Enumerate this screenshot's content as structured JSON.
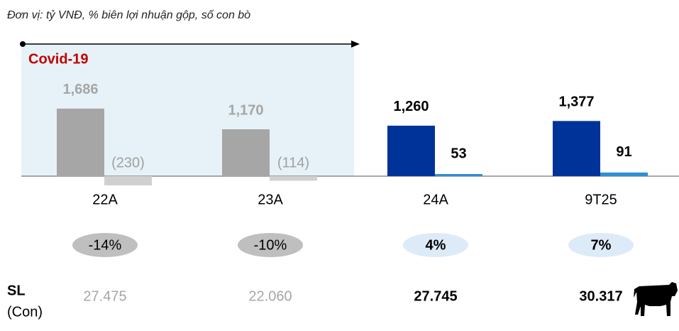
{
  "chart_data": {
    "type": "bar",
    "subtitle": "Đơn vị: tỷ VNĐ, % biên lợi nhuận gộp, số con bò",
    "annotation": {
      "text": "Covid-19",
      "span": [
        "22A",
        "23A"
      ]
    },
    "categories": [
      "22A",
      "23A",
      "24A",
      "9T25"
    ],
    "series": [
      {
        "colors": [
          "#a6a6a6",
          "#a6a6a6",
          "#003399",
          "#003399"
        ],
        "values": [
          1686,
          1170,
          1260,
          1377
        ],
        "value_labels": [
          "1,686",
          "1,170",
          "1,260",
          "1,377"
        ]
      },
      {
        "colors": [
          "#d0d0d0",
          "#d0d0d0",
          "#2e8fd6",
          "#2e8fd6"
        ],
        "values": [
          -230,
          -114,
          53,
          91
        ],
        "value_labels": [
          "(230)",
          "(114)",
          "53",
          "91"
        ]
      }
    ],
    "margins": {
      "values": [
        -14,
        -10,
        4,
        7
      ],
      "value_labels": [
        "-14%",
        "-10%",
        "4%",
        "7%"
      ]
    },
    "herd": {
      "label": "SL",
      "unit": "(Con)",
      "values": [
        27475,
        22060,
        27745,
        30317
      ],
      "value_labels": [
        "27.475",
        "22.060",
        "27.745",
        "30.317"
      ]
    }
  }
}
